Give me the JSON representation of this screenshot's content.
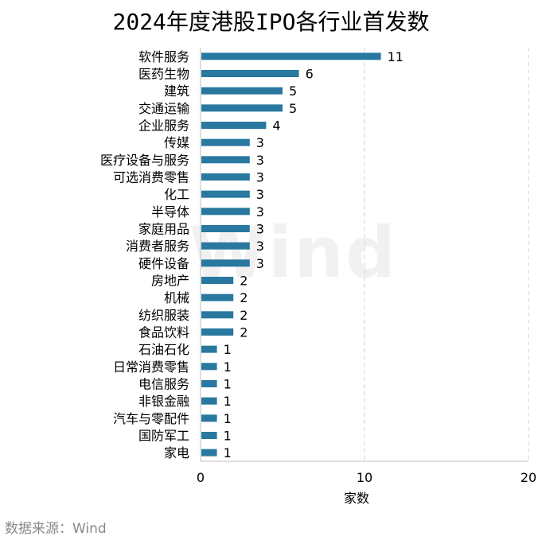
{
  "title": "2024年度港股IPO各行业首发数",
  "source": "数据来源：Wind",
  "watermark": "Wind",
  "chart_data": {
    "type": "bar",
    "orientation": "horizontal",
    "categories": [
      "软件服务",
      "医药生物",
      "建筑",
      "交通运输",
      "企业服务",
      "传媒",
      "医疗设备与服务",
      "可选消费零售",
      "化工",
      "半导体",
      "家庭用品",
      "消费者服务",
      "硬件设备",
      "房地产",
      "机械",
      "纺织服装",
      "食品饮料",
      "石油石化",
      "日常消费零售",
      "电信服务",
      "非银金融",
      "汽车与零配件",
      "国防军工",
      "家电"
    ],
    "values": [
      11,
      6,
      5,
      5,
      4,
      3,
      3,
      3,
      3,
      3,
      3,
      3,
      3,
      2,
      2,
      2,
      2,
      1,
      1,
      1,
      1,
      1,
      1,
      1
    ],
    "xlabel": "家数",
    "ylabel": "",
    "xlim": [
      0,
      20
    ],
    "xticks": [
      0,
      10,
      20
    ],
    "data_labels": true,
    "grid": "vertical dashed",
    "legend": "none",
    "bar_color": "#2878a0"
  }
}
